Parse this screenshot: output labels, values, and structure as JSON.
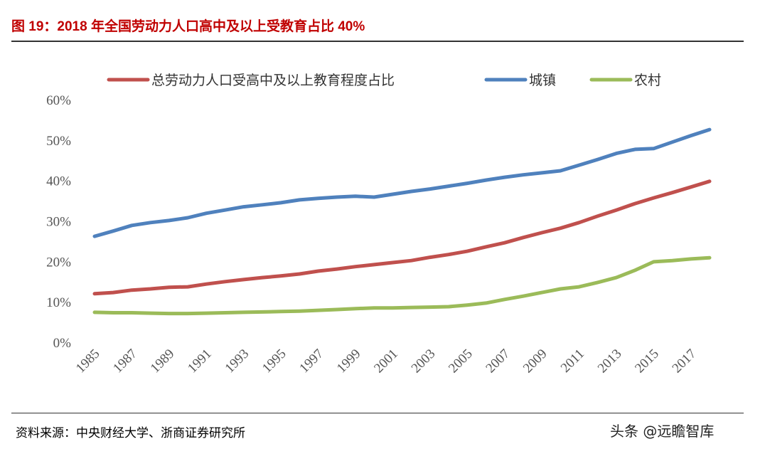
{
  "title": "图 19：2018 年全国劳动力人口高中及以上受教育占比 40%",
  "source": "资料来源：中央财经大学、浙商证券研究所",
  "watermark": "头条 @远瞻智库",
  "chart_data": {
    "type": "line",
    "title": "",
    "xlabel": "",
    "ylabel": "",
    "ylim": [
      0,
      60
    ],
    "yticks": [
      "0%",
      "10%",
      "20%",
      "30%",
      "40%",
      "50%",
      "60%"
    ],
    "xticks": [
      "1985",
      "1987",
      "1989",
      "1991",
      "1993",
      "1995",
      "1997",
      "1999",
      "2001",
      "2003",
      "2005",
      "2007",
      "2009",
      "2011",
      "2013",
      "2015",
      "2017"
    ],
    "grid": false,
    "legend": "top",
    "x": [
      1985,
      1986,
      1987,
      1988,
      1989,
      1990,
      1991,
      1992,
      1993,
      1994,
      1995,
      1996,
      1997,
      1998,
      1999,
      2000,
      2001,
      2002,
      2003,
      2004,
      2005,
      2006,
      2007,
      2008,
      2009,
      2010,
      2011,
      2012,
      2013,
      2014,
      2015,
      2016,
      2017,
      2018
    ],
    "series": [
      {
        "name": "总劳动力人口受高中及以上教育程度占比",
        "color": "#c0504d",
        "values": [
          12.0,
          12.3,
          12.9,
          13.2,
          13.6,
          13.7,
          14.4,
          15.0,
          15.5,
          16.0,
          16.4,
          16.9,
          17.6,
          18.1,
          18.7,
          19.2,
          19.7,
          20.2,
          21.0,
          21.7,
          22.5,
          23.6,
          24.6,
          25.9,
          27.1,
          28.2,
          29.6,
          31.2,
          32.7,
          34.3,
          35.7,
          37.0,
          38.4,
          39.8
        ]
      },
      {
        "name": "城镇",
        "color": "#4f81bd",
        "values": [
          26.2,
          27.5,
          28.9,
          29.6,
          30.1,
          30.8,
          31.9,
          32.7,
          33.5,
          34.0,
          34.5,
          35.2,
          35.6,
          35.9,
          36.1,
          35.9,
          36.6,
          37.3,
          37.9,
          38.6,
          39.3,
          40.1,
          40.8,
          41.4,
          41.9,
          42.4,
          43.8,
          45.2,
          46.7,
          47.7,
          47.9,
          49.5,
          51.1,
          52.6
        ]
      },
      {
        "name": "农村",
        "color": "#9bbb59",
        "values": [
          7.4,
          7.3,
          7.3,
          7.2,
          7.1,
          7.1,
          7.2,
          7.3,
          7.4,
          7.5,
          7.6,
          7.7,
          7.9,
          8.1,
          8.3,
          8.5,
          8.5,
          8.6,
          8.7,
          8.8,
          9.2,
          9.7,
          10.6,
          11.4,
          12.3,
          13.2,
          13.7,
          14.8,
          16.0,
          17.8,
          19.9,
          20.2,
          20.6,
          20.9
        ]
      }
    ]
  }
}
